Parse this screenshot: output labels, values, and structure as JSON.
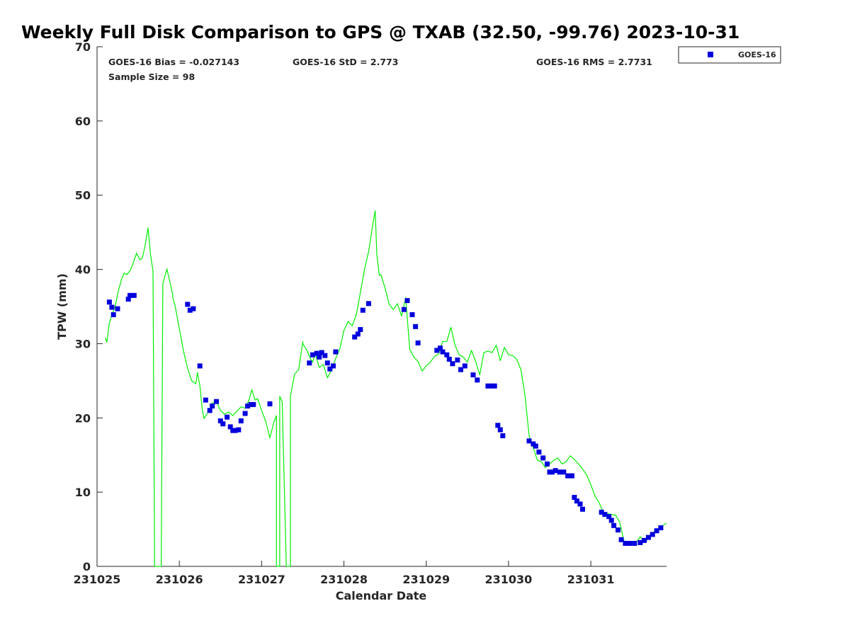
{
  "title": "Weekly Full Disk Comparison to GPS @ TXAB (32.50, -99.76) 2023-10-31",
  "stats": {
    "bias": "GOES-16 Bias = -0.027143",
    "std": "GOES-16 StD = 2.773",
    "rms": "GOES-16 RMS = 2.7731",
    "sample": "Sample Size = 98"
  },
  "colors": {
    "goes": "#0000dd",
    "gps": "#00ee00",
    "axis": "#262626",
    "title": "#000000"
  },
  "chart_data": {
    "type": "scatter",
    "title": "Weekly Full Disk Comparison to GPS @ TXAB (32.50, -99.76) 2023-10-31",
    "xlabel": "Calendar Date",
    "ylabel": "TPW (mm)",
    "xlim": [
      "231025",
      "231031 22:00"
    ],
    "ylim": [
      0,
      70
    ],
    "xticks": [
      "231025",
      "231026",
      "231027",
      "231028",
      "231029",
      "231030",
      "231031"
    ],
    "yticks": [
      0,
      10,
      20,
      30,
      40,
      50,
      60,
      70
    ],
    "grid": false,
    "legend": {
      "position": "top-right",
      "entries": [
        "GOES-16"
      ]
    },
    "series": [
      {
        "name": "GOES-16",
        "type": "scatter",
        "marker": "square",
        "x": [
          0.15,
          0.18,
          0.2,
          0.25,
          0.38,
          0.4,
          0.45,
          1.1,
          1.13,
          1.17,
          1.25,
          1.32,
          1.37,
          1.4,
          1.45,
          1.5,
          1.53,
          1.58,
          1.62,
          1.65,
          1.68,
          1.72,
          1.75,
          1.8,
          1.83,
          1.87,
          1.9,
          2.1,
          2.58,
          2.62,
          2.67,
          2.7,
          2.73,
          2.77,
          2.8,
          2.83,
          2.87,
          2.9,
          3.13,
          3.17,
          3.2,
          3.23,
          3.3,
          3.73,
          3.77,
          3.83,
          3.87,
          3.9,
          4.13,
          4.17,
          4.2,
          4.25,
          4.28,
          4.32,
          4.38,
          4.42,
          4.47,
          4.57,
          4.62,
          4.75,
          4.8,
          4.83,
          4.87,
          4.9,
          4.93,
          5.25,
          5.3,
          5.33,
          5.37,
          5.42,
          5.47,
          5.5,
          5.53,
          5.57,
          5.62,
          5.67,
          5.72,
          5.77,
          5.8,
          5.83,
          5.87,
          5.9,
          6.13,
          6.17,
          6.22,
          6.25,
          6.28,
          6.33,
          6.37,
          6.42,
          6.47,
          6.53,
          6.6,
          6.65,
          6.7,
          6.75,
          6.8,
          6.85
        ],
        "y": [
          35.6,
          34.9,
          33.9,
          34.7,
          36.0,
          36.5,
          36.5,
          35.3,
          34.5,
          34.7,
          27.0,
          22.4,
          21.0,
          21.6,
          22.2,
          19.6,
          19.2,
          20.1,
          18.8,
          18.3,
          18.3,
          18.4,
          19.6,
          20.6,
          21.6,
          21.8,
          21.8,
          21.9,
          27.4,
          28.5,
          28.7,
          28.2,
          28.8,
          28.4,
          27.4,
          26.6,
          27.0,
          28.9,
          30.9,
          31.3,
          31.9,
          34.5,
          35.4,
          34.6,
          35.8,
          33.9,
          32.3,
          30.1,
          29.1,
          29.4,
          28.9,
          28.5,
          27.9,
          27.3,
          27.8,
          26.5,
          27.0,
          25.8,
          25.1,
          24.3,
          24.3,
          24.3,
          19.0,
          18.4,
          17.6,
          16.9,
          16.5,
          16.2,
          15.4,
          14.6,
          13.8,
          12.7,
          12.7,
          12.9,
          12.7,
          12.7,
          12.2,
          12.2,
          9.3,
          8.8,
          8.4,
          7.7,
          7.3,
          7.0,
          6.7,
          6.2,
          5.5,
          4.9,
          3.6,
          3.1,
          3.1,
          3.1,
          3.2,
          3.5,
          3.9,
          4.3,
          4.8,
          5.2
        ],
        "note_x_units": "days since 231025 00:00"
      },
      {
        "name": "GPS",
        "type": "line",
        "x": [
          0.1,
          0.12,
          0.15,
          0.18,
          0.22,
          0.25,
          0.3,
          0.33,
          0.36,
          0.4,
          0.43,
          0.45,
          0.48,
          0.52,
          0.55,
          0.58,
          0.62,
          0.65,
          0.68,
          0.7,
          0.72,
          0.75,
          0.78,
          0.8,
          0.85,
          0.85,
          0.92,
          0.92,
          0.95,
          1.0,
          1.05,
          1.1,
          1.15,
          1.2,
          1.22,
          1.25,
          1.28,
          1.3,
          1.35,
          1.4,
          1.45,
          1.5,
          1.55,
          1.6,
          1.65,
          1.7,
          1.75,
          1.8,
          1.85,
          1.88,
          1.92,
          1.95,
          2.0,
          2.05,
          2.1,
          2.15,
          2.18,
          2.18,
          2.22,
          2.22,
          2.25,
          2.3,
          2.35,
          2.35,
          2.4,
          2.45,
          2.5,
          2.5,
          2.55,
          2.6,
          2.62,
          2.65,
          2.7,
          2.75,
          2.8,
          2.85,
          2.9,
          2.95,
          3.0,
          3.05,
          3.1,
          3.15,
          3.2,
          3.25,
          3.3,
          3.35,
          3.38,
          3.4,
          3.43,
          3.45,
          3.5,
          3.55,
          3.6,
          3.65,
          3.7,
          3.75,
          3.8,
          3.85,
          3.9,
          3.95,
          4.0,
          4.05,
          4.1,
          4.15,
          4.2,
          4.25,
          4.3,
          4.35,
          4.4,
          4.45,
          4.5,
          4.55,
          4.6,
          4.65,
          4.7,
          4.75,
          4.8,
          4.85,
          4.9,
          4.95,
          5.0,
          5.05,
          5.1,
          5.15,
          5.2,
          5.25,
          5.3,
          5.35,
          5.4,
          5.45,
          5.5,
          5.55,
          5.6,
          5.65,
          5.7,
          5.75,
          5.8,
          5.85,
          5.9,
          5.95,
          6.0,
          6.05,
          6.1,
          6.15,
          6.2,
          6.25,
          6.3,
          6.35,
          6.4,
          6.45,
          6.5,
          6.55,
          6.6,
          6.65,
          6.7,
          6.75,
          6.8,
          6.85,
          6.9,
          6.92
        ],
        "y": [
          30.8,
          30.2,
          32.8,
          33.9,
          35.0,
          36.7,
          38.8,
          39.5,
          39.3,
          39.8,
          40.6,
          41.2,
          42.2,
          41.3,
          41.5,
          43.0,
          45.6,
          42.0,
          39.8,
          0,
          0,
          0,
          0,
          38.1,
          40.1,
          40.0,
          36.6,
          36.2,
          35.0,
          32.0,
          29.0,
          26.7,
          25.0,
          24.6,
          26.1,
          24.3,
          21.0,
          19.9,
          20.8,
          22.0,
          22.2,
          21.0,
          20.5,
          20.8,
          20.3,
          20.9,
          21.5,
          21.3,
          22.5,
          23.8,
          22.4,
          22.6,
          21.0,
          19.5,
          17.3,
          19.5,
          20.3,
          0,
          0,
          22.9,
          22.2,
          0,
          0,
          22.9,
          25.9,
          26.5,
          30.3,
          30.0,
          29.1,
          27.8,
          27.5,
          28.7,
          26.8,
          27.2,
          25.4,
          26.5,
          28.0,
          29.3,
          31.8,
          33.0,
          32.4,
          33.9,
          36.9,
          40.0,
          42.4,
          46.0,
          47.9,
          42.0,
          39.2,
          39.3,
          37.5,
          35.3,
          34.6,
          35.4,
          33.7,
          36.2,
          29.2,
          28.2,
          27.6,
          26.3,
          27.0,
          27.5,
          28.3,
          28.6,
          30.3,
          30.3,
          32.2,
          29.8,
          28.5,
          28.2,
          27.5,
          29.1,
          27.6,
          25.8,
          28.8,
          29.0,
          28.8,
          29.8,
          27.7,
          29.5,
          28.5,
          28.4,
          27.9,
          26.5,
          23.0,
          17.6,
          16.0,
          14.3,
          14.1,
          13.3,
          13.8,
          14.3,
          14.6,
          13.8,
          14.1,
          14.9,
          14.4,
          13.8,
          13.1,
          12.3,
          11.0,
          9.5,
          8.6,
          7.3,
          7.1,
          7.0,
          6.9,
          6.0,
          3.5,
          3.0,
          3.1,
          3.2,
          4.0,
          3.3,
          3.7,
          4.5,
          4.9,
          5.3,
          5.7,
          5.8
        ],
        "note_x_units": "days since 231025 00:00"
      }
    ]
  }
}
